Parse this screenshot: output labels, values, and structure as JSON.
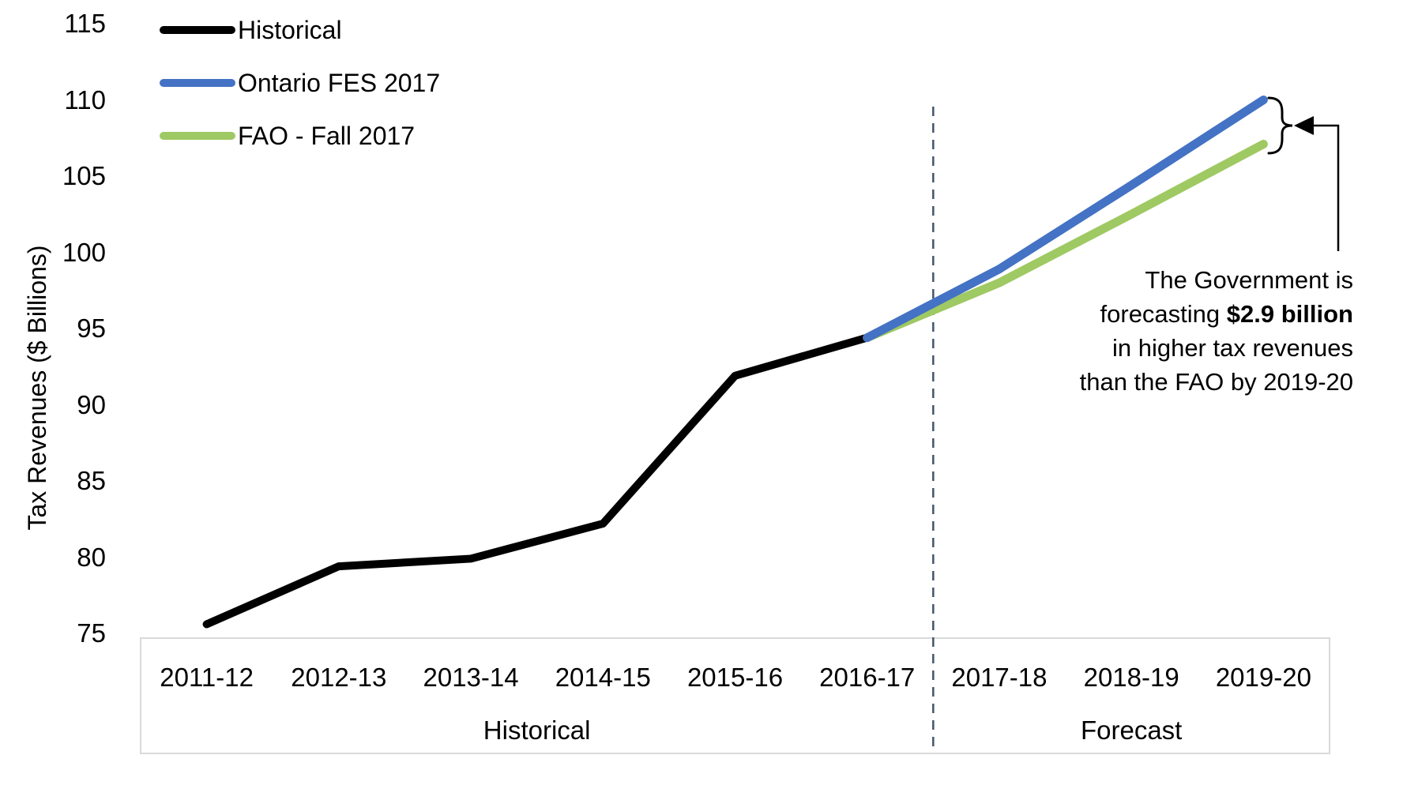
{
  "figure": {
    "background": "#FFFFFF",
    "text_color": "#000000",
    "axis_box_border_color": "#D9D9D9"
  },
  "legend": {
    "position": "top-left",
    "items": [
      {
        "label": "Historical",
        "color": "#000000"
      },
      {
        "label": "Ontario FES 2017",
        "color": "#4472C4"
      },
      {
        "label": "FAO - Fall 2017",
        "color": "#9FC963"
      }
    ]
  },
  "chart_data": {
    "type": "line",
    "title": "",
    "xlabel": "",
    "ylabel": "Tax Revenues ($ Billions)",
    "ylim": [
      75,
      115
    ],
    "y_ticks": [
      115,
      110,
      105,
      100,
      95,
      90,
      85,
      80,
      75
    ],
    "grid": false,
    "legend_position": "top-left",
    "categories": [
      "2011-12",
      "2012-13",
      "2013-14",
      "2014-15",
      "2015-16",
      "2016-17",
      "2017-18",
      "2018-19",
      "2019-20"
    ],
    "series": [
      {
        "name": "Historical",
        "color": "#000000",
        "values": [
          75.6,
          79.4,
          79.9,
          82.2,
          91.9,
          94.4,
          null,
          null,
          null
        ]
      },
      {
        "name": "Ontario FES 2017",
        "color": "#4472C4",
        "values": [
          null,
          null,
          null,
          null,
          null,
          94.4,
          98.9,
          104.4,
          110.0
        ]
      },
      {
        "name": "FAO - Fall 2017",
        "color": "#9FC963",
        "values": [
          null,
          null,
          null,
          null,
          null,
          94.4,
          98.0,
          102.5,
          107.1
        ]
      }
    ],
    "forecast_divider": {
      "between": [
        "2016-17",
        "2017-18"
      ],
      "boundary_index": 6,
      "color": "#44546A",
      "style": "dashed"
    },
    "axis_groups": [
      {
        "label": "Historical",
        "start_index": 0,
        "end_index": 5
      },
      {
        "label": "Forecast",
        "start_index": 6,
        "end_index": 8
      }
    ],
    "annotation": {
      "lines": [
        "The Government is",
        "forecasting $2.9 billion",
        "in higher tax revenues",
        "than the FAO by 2019-20"
      ],
      "bold_text": "$2.9 billion",
      "gap_value_2019_20": 2.9
    }
  }
}
